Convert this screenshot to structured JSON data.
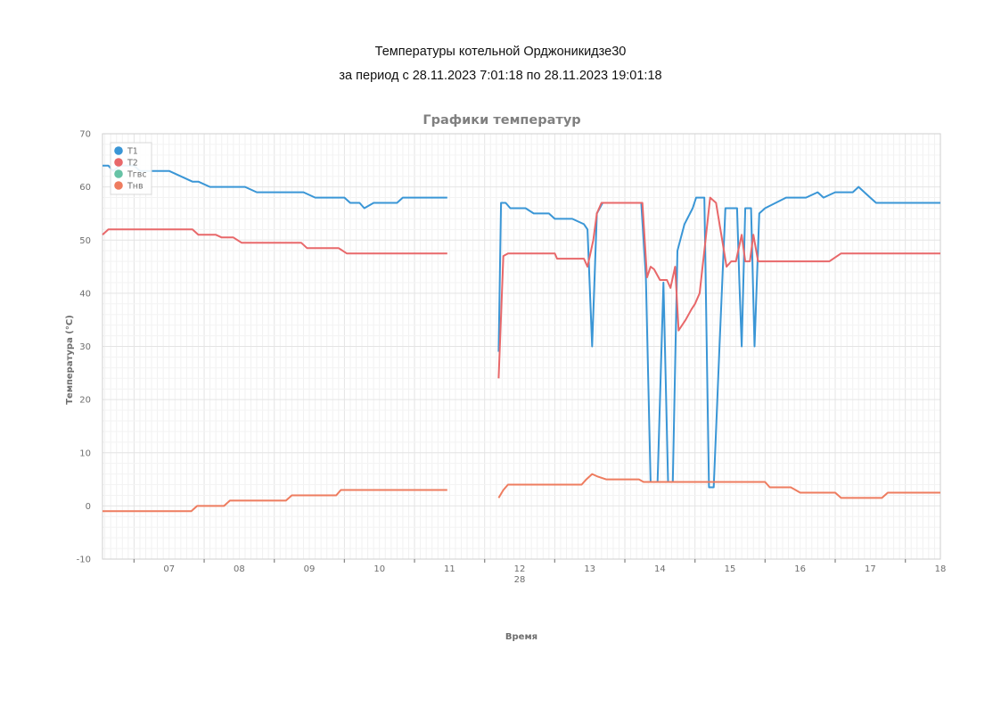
{
  "page": {
    "title_line1": "Температуры котельной Орджоникидзе30",
    "title_line2": "за период с 28.11.2023 7:01:18 по 28.11.2023 19:01:18"
  },
  "chart_data": {
    "type": "line",
    "title": "Графики температур",
    "xlabel": "Время",
    "ylabel": "Температура (°C)",
    "date_label": "28",
    "xlim": [
      "06:33",
      "18:30"
    ],
    "ylim": [
      -10,
      70
    ],
    "yticks": [
      -10,
      0,
      10,
      20,
      30,
      40,
      50,
      60,
      70
    ],
    "xticks": [
      {
        "time": "07:00",
        "label": "07"
      },
      {
        "time": "08:00",
        "label": "08"
      },
      {
        "time": "09:00",
        "label": "09"
      },
      {
        "time": "10:00",
        "label": "10"
      },
      {
        "time": "11:00",
        "label": "11"
      },
      {
        "time": "12:00",
        "label": "12"
      },
      {
        "time": "13:00",
        "label": "13"
      },
      {
        "time": "14:00",
        "label": "14"
      },
      {
        "time": "15:00",
        "label": "15"
      },
      {
        "time": "16:00",
        "label": "16"
      },
      {
        "time": "17:00",
        "label": "17"
      },
      {
        "time": "18:00",
        "label": "18"
      }
    ],
    "grid": true,
    "legend_position": "top-left",
    "series": [
      {
        "name": "T1",
        "color": "#3a96d6",
        "segments": [
          [
            [
              "06:33",
              64
            ],
            [
              "06:38",
              64
            ],
            [
              "06:42",
              63
            ],
            [
              "06:48",
              64
            ],
            [
              "06:55",
              64
            ],
            [
              "07:00",
              64
            ],
            [
              "07:05",
              63
            ],
            [
              "07:30",
              63
            ],
            [
              "07:40",
              62
            ],
            [
              "07:50",
              61
            ],
            [
              "07:55",
              61
            ],
            [
              "08:05",
              60
            ],
            [
              "08:35",
              60
            ],
            [
              "08:45",
              59
            ],
            [
              "09:25",
              59
            ],
            [
              "09:35",
              58
            ],
            [
              "10:00",
              58
            ],
            [
              "10:05",
              57
            ],
            [
              "10:13",
              57
            ],
            [
              "10:17",
              56
            ],
            [
              "10:25",
              57
            ],
            [
              "10:45",
              57
            ],
            [
              "10:50",
              58
            ],
            [
              "11:25",
              58
            ],
            [
              "11:28",
              58
            ]
          ],
          [
            [
              "12:12",
              29
            ],
            [
              "12:14",
              57
            ],
            [
              "12:18",
              57
            ],
            [
              "12:22",
              56
            ],
            [
              "12:35",
              56
            ],
            [
              "12:42",
              55
            ],
            [
              "12:55",
              55
            ],
            [
              "13:00",
              54
            ],
            [
              "13:15",
              54
            ],
            [
              "13:25",
              53
            ],
            [
              "13:28",
              52
            ],
            [
              "13:32",
              30
            ],
            [
              "13:36",
              55
            ],
            [
              "13:41",
              57
            ],
            [
              "14:14",
              57
            ],
            [
              "14:18",
              43
            ],
            [
              "14:22",
              4.5
            ],
            [
              "14:28",
              4.5
            ],
            [
              "14:33",
              42
            ],
            [
              "14:37",
              4.5
            ],
            [
              "14:41",
              4.5
            ],
            [
              "14:45",
              48
            ],
            [
              "14:51",
              53
            ],
            [
              "14:58",
              56
            ],
            [
              "15:01",
              58
            ],
            [
              "15:05",
              58
            ],
            [
              "15:08",
              58
            ],
            [
              "15:12",
              3.5
            ],
            [
              "15:16",
              3.5
            ],
            [
              "15:21",
              30
            ],
            [
              "15:26",
              56
            ],
            [
              "15:36",
              56
            ],
            [
              "15:38",
              42
            ],
            [
              "15:40",
              30
            ],
            [
              "15:43",
              56
            ],
            [
              "15:48",
              56
            ],
            [
              "15:51",
              30
            ],
            [
              "15:55",
              55
            ],
            [
              "16:00",
              56
            ],
            [
              "16:18",
              58
            ],
            [
              "16:35",
              58
            ],
            [
              "16:45",
              59
            ],
            [
              "16:50",
              58
            ],
            [
              "17:00",
              59
            ],
            [
              "17:15",
              59
            ],
            [
              "17:20",
              60
            ],
            [
              "17:30",
              58
            ],
            [
              "17:35",
              57
            ],
            [
              "17:40",
              57
            ],
            [
              "18:30",
              57
            ]
          ]
        ]
      },
      {
        "name": "T2",
        "color": "#e8686a",
        "segments": [
          [
            [
              "06:33",
              51
            ],
            [
              "06:38",
              52
            ],
            [
              "07:50",
              52
            ],
            [
              "07:55",
              51
            ],
            [
              "08:10",
              51
            ],
            [
              "08:15",
              50.5
            ],
            [
              "08:25",
              50.5
            ],
            [
              "08:32",
              49.5
            ],
            [
              "09:15",
              49.5
            ],
            [
              "09:23",
              49.5
            ],
            [
              "09:28",
              48.5
            ],
            [
              "09:48",
              48.5
            ],
            [
              "09:55",
              48.5
            ],
            [
              "10:02",
              47.5
            ],
            [
              "11:25",
              47.5
            ],
            [
              "11:28",
              47.5
            ]
          ],
          [
            [
              "12:12",
              24
            ],
            [
              "12:16",
              47
            ],
            [
              "12:20",
              47.5
            ],
            [
              "13:00",
              47.5
            ],
            [
              "13:02",
              46.5
            ],
            [
              "13:25",
              46.5
            ],
            [
              "13:28",
              45
            ],
            [
              "13:33",
              50
            ],
            [
              "13:36",
              55
            ],
            [
              "13:40",
              57
            ],
            [
              "14:15",
              57
            ],
            [
              "14:19",
              43
            ],
            [
              "14:22",
              45
            ],
            [
              "14:25",
              44.5
            ],
            [
              "14:30",
              42.5
            ],
            [
              "14:36",
              42.5
            ],
            [
              "14:39",
              41
            ],
            [
              "14:43",
              45
            ],
            [
              "14:46",
              33
            ],
            [
              "14:52",
              35
            ],
            [
              "14:57",
              37
            ],
            [
              "15:00",
              38
            ],
            [
              "15:04",
              40
            ],
            [
              "15:09",
              50
            ],
            [
              "15:13",
              58
            ],
            [
              "15:18",
              57
            ],
            [
              "15:24",
              49
            ],
            [
              "15:27",
              45
            ],
            [
              "15:31",
              46
            ],
            [
              "15:35",
              46
            ],
            [
              "15:40",
              51
            ],
            [
              "15:43",
              46
            ],
            [
              "15:47",
              46
            ],
            [
              "15:50",
              51
            ],
            [
              "15:54",
              46
            ],
            [
              "16:25",
              46
            ],
            [
              "16:55",
              46
            ],
            [
              "17:05",
              47.5
            ],
            [
              "17:15",
              47.5
            ],
            [
              "18:30",
              47.5
            ]
          ]
        ]
      },
      {
        "name": "Тгвс",
        "color": "#66c2a5",
        "segments": []
      },
      {
        "name": "Тнв",
        "color": "#ee7c5f",
        "segments": [
          [
            [
              "06:33",
              -1
            ],
            [
              "07:49",
              -1
            ],
            [
              "07:54",
              0
            ],
            [
              "08:17",
              0
            ],
            [
              "08:22",
              1
            ],
            [
              "09:10",
              1
            ],
            [
              "09:15",
              2
            ],
            [
              "09:53",
              2
            ],
            [
              "09:57",
              3
            ],
            [
              "11:25",
              3
            ],
            [
              "11:28",
              3
            ]
          ],
          [
            [
              "12:12",
              1.5
            ],
            [
              "12:16",
              3
            ],
            [
              "12:20",
              4
            ],
            [
              "13:23",
              4
            ],
            [
              "13:27",
              5
            ],
            [
              "13:32",
              6
            ],
            [
              "13:37",
              5.5
            ],
            [
              "13:44",
              5
            ],
            [
              "14:12",
              5
            ],
            [
              "14:16",
              4.5
            ],
            [
              "14:40",
              4.5
            ],
            [
              "14:46",
              4.5
            ],
            [
              "14:50",
              4.5
            ],
            [
              "15:00",
              4.5
            ],
            [
              "15:10",
              4.5
            ],
            [
              "15:25",
              4.5
            ],
            [
              "16:00",
              4.5
            ],
            [
              "16:04",
              3.5
            ],
            [
              "16:22",
              3.5
            ],
            [
              "16:30",
              2.5
            ],
            [
              "16:55",
              2.5
            ],
            [
              "17:00",
              2.5
            ],
            [
              "17:05",
              1.5
            ],
            [
              "17:40",
              1.5
            ],
            [
              "17:45",
              2.5
            ],
            [
              "18:30",
              2.5
            ]
          ]
        ]
      }
    ]
  }
}
